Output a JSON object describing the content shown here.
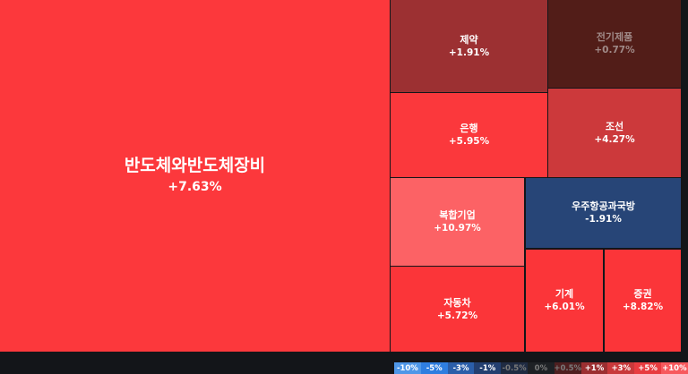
{
  "chart_data": {
    "type": "treemap",
    "tiles": [
      {
        "name": "반도체와반도체장비",
        "change": "+7.63%",
        "value": 7.63,
        "color": "#fc383c"
      },
      {
        "name": "제약",
        "change": "+1.91%",
        "value": 1.91,
        "color": "#9c3032"
      },
      {
        "name": "전기제품",
        "change": "+0.77%",
        "value": 0.77,
        "color": "#521d18"
      },
      {
        "name": "은행",
        "change": "+5.95%",
        "value": 5.95,
        "color": "#fb383c"
      },
      {
        "name": "조선",
        "change": "+4.27%",
        "value": 4.27,
        "color": "#cc393b"
      },
      {
        "name": "복합기업",
        "change": "+10.97%",
        "value": 10.97,
        "color": "#fc6265"
      },
      {
        "name": "우주항공과국방",
        "change": "-1.91%",
        "value": -1.91,
        "color": "#274577"
      },
      {
        "name": "자동차",
        "change": "+5.72%",
        "value": 5.72,
        "color": "#fb3539"
      },
      {
        "name": "기계",
        "change": "+6.01%",
        "value": 6.01,
        "color": "#fb3539"
      },
      {
        "name": "증권",
        "change": "+8.82%",
        "value": 8.82,
        "color": "#fb3539"
      }
    ],
    "legend": [
      {
        "label": "-10%",
        "color": "#4f97e8"
      },
      {
        "label": "-5%",
        "color": "#2f7ee0"
      },
      {
        "label": "-3%",
        "color": "#2b5ea9"
      },
      {
        "label": "-1%",
        "color": "#233f70"
      },
      {
        "label": "-0.5%",
        "color": "#1f2b42"
      },
      {
        "label": "0%",
        "color": "#1e2125"
      },
      {
        "label": "+0.5%",
        "color": "#4e1f20"
      },
      {
        "label": "+1%",
        "color": "#9b2f31"
      },
      {
        "label": "+3%",
        "color": "#c8393b"
      },
      {
        "label": "+5%",
        "color": "#e83c40"
      },
      {
        "label": "+10%",
        "color": "#f7595d"
      }
    ]
  }
}
